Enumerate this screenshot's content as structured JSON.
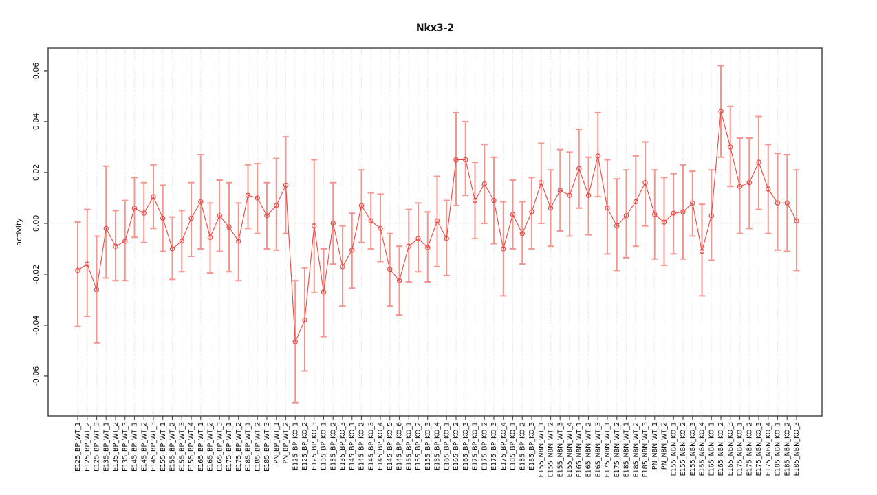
{
  "figure": {
    "title": "Nkx3-2"
  },
  "chart_data": {
    "type": "line",
    "title": "Nkx3-2",
    "xlabel": "",
    "ylabel": "activity",
    "legend": "none",
    "grid": "vertical dotted gridline per category; dotted horizontal line at y=0",
    "marker": "open-circle with error bars",
    "ylim": [
      -0.0757,
      0.0689
    ],
    "yticks": [
      0.06,
      0.04,
      0.02,
      0,
      -0.02,
      -0.04,
      -0.06
    ],
    "ytick_labels": [
      "0.06",
      "0.04",
      "0.02",
      "0.00",
      "-0.02",
      "-0.04",
      "-0.06"
    ],
    "categories": [
      "E125_BP_WT_1",
      "E125_BP_WT_2",
      "E125_BP_WT_3",
      "E135_BP_WT_1",
      "E135_BP_WT_2",
      "E135_BP_WT_3",
      "E145_BP_WT_1",
      "E145_BP_WT_2",
      "E145_BP_WT_3",
      "E155_BP_WT_1",
      "E155_BP_WT_2",
      "E155_BP_WT_3",
      "E155_BP_WT_4",
      "E165_BP_WT_1",
      "E165_BP_WT_2",
      "E165_BP_WT_3",
      "E175_BP_WT_1",
      "E175_BP_WT_2",
      "E185_BP_WT_1",
      "E185_BP_WT_2",
      "E185_BP_WT_3",
      "PN_BP_WT_1",
      "PN_BP_WT_2",
      "E125_BP_KO_1",
      "E125_BP_KO_2",
      "E125_BP_KO_3",
      "E135_BP_KO_1",
      "E135_BP_KO_2",
      "E135_BP_KO_3",
      "E145_BP_KO_1",
      "E145_BP_KO_2",
      "E145_BP_KO_3",
      "E145_BP_KO_4",
      "E145_BP_KO_5",
      "E145_BP_KO_6",
      "E155_BP_KO_1",
      "E155_BP_KO_2",
      "E155_BP_KO_3",
      "E155_BP_KO_4",
      "E165_BP_KO_1",
      "E165_BP_KO_2",
      "E165_BP_KO_3",
      "E175_BP_KO_1",
      "E175_BP_KO_2",
      "E175_BP_KO_3",
      "E175_BP_KO_4",
      "E185_BP_KO_1",
      "E185_BP_KO_2",
      "E185_BP_KO_3",
      "E155_NBN_WT_1",
      "E155_NBN_WT_2",
      "E155_NBN_WT_3",
      "E155_NBN_WT_4",
      "E165_NBN_WT_1",
      "E165_NBN_WT_2",
      "E165_NBN_WT_3",
      "E175_NBN_WT_1",
      "E175_NBN_WT_2",
      "E185_NBN_WT_1",
      "E185_NBN_WT_2",
      "E185_NBN_WT_3",
      "PN_NBN_WT_1",
      "PN_NBN_WT_2",
      "E155_NBN_KO_1",
      "E155_NBN_KO_2",
      "E155_NBN_KO_3",
      "E155_NBN_KO_4",
      "E165_NBN_KO_1",
      "E165_NBN_KO_2",
      "E165_NBN_KO_3",
      "E175_NBN_KO_1",
      "E175_NBN_KO_2",
      "E175_NBN_KO_3",
      "E175_NBN_KO_4",
      "E185_NBN_KO_1",
      "E185_NBN_KO_2",
      "E185_NBN_KO_3"
    ],
    "series": [
      {
        "name": "activity",
        "values": [
          -0.0185,
          -0.016,
          -0.026,
          -0.002,
          -0.009,
          -0.007,
          0.006,
          0.004,
          0.0105,
          0.002,
          -0.01,
          -0.007,
          0.002,
          0.0085,
          -0.0055,
          0.003,
          -0.0015,
          -0.007,
          0.011,
          0.01,
          0.003,
          0.007,
          0.015,
          -0.0465,
          -0.038,
          -0.001,
          -0.027,
          0.0,
          -0.017,
          -0.0105,
          0.007,
          0.001,
          -0.002,
          -0.018,
          -0.0225,
          -0.009,
          -0.006,
          -0.0095,
          0.001,
          -0.006,
          0.025,
          0.025,
          0.009,
          0.0155,
          0.009,
          -0.01,
          0.0035,
          -0.004,
          0.0045,
          0.016,
          0.006,
          0.013,
          0.011,
          0.0215,
          0.011,
          0.0265,
          0.006,
          -0.001,
          0.003,
          0.0085,
          0.016,
          0.0035,
          0.0005,
          0.004,
          0.0045,
          0.008,
          -0.011,
          0.003,
          0.044,
          0.03,
          0.0145,
          0.016,
          0.024,
          0.0135,
          0.008,
          0.008,
          0.001
        ],
        "ci_low": [
          -0.0405,
          -0.0365,
          -0.047,
          -0.0215,
          -0.0225,
          -0.0225,
          -0.0055,
          -0.0075,
          -0.002,
          -0.011,
          -0.022,
          -0.019,
          -0.013,
          -0.01,
          -0.0195,
          -0.011,
          -0.019,
          -0.0225,
          -0.002,
          -0.004,
          -0.01,
          -0.0105,
          -0.004,
          -0.0705,
          -0.058,
          -0.027,
          -0.0445,
          -0.016,
          -0.0325,
          -0.0255,
          -0.0075,
          -0.01,
          -0.015,
          -0.0325,
          -0.036,
          -0.023,
          -0.019,
          -0.023,
          -0.017,
          -0.0205,
          0.007,
          0.011,
          -0.006,
          0.0,
          -0.008,
          -0.0285,
          -0.01,
          -0.016,
          -0.01,
          0.0,
          -0.009,
          -0.003,
          -0.005,
          0.006,
          -0.0045,
          0.0105,
          -0.012,
          -0.0185,
          -0.0135,
          -0.009,
          -0.001,
          -0.014,
          -0.0165,
          -0.012,
          -0.014,
          -0.005,
          -0.0285,
          -0.0145,
          0.026,
          0.0145,
          -0.004,
          -0.002,
          0.0055,
          -0.004,
          -0.0105,
          -0.011,
          -0.0185
        ],
        "ci_high": [
          0.0005,
          0.0055,
          -0.005,
          0.0225,
          0.005,
          0.009,
          0.018,
          0.016,
          0.023,
          0.015,
          0.0025,
          0.005,
          0.016,
          0.027,
          0.008,
          0.017,
          0.016,
          0.008,
          0.023,
          0.0235,
          0.016,
          0.0255,
          0.034,
          -0.0225,
          -0.0175,
          0.025,
          -0.01,
          0.016,
          -0.001,
          0.004,
          0.021,
          0.012,
          0.0115,
          -0.004,
          -0.009,
          0.0055,
          0.008,
          0.0045,
          0.0185,
          0.009,
          0.0435,
          0.04,
          0.024,
          0.031,
          0.026,
          0.0085,
          0.017,
          0.0085,
          0.018,
          0.0315,
          0.021,
          0.029,
          0.028,
          0.037,
          0.026,
          0.0435,
          0.025,
          0.0175,
          0.021,
          0.0265,
          0.032,
          0.021,
          0.018,
          0.0195,
          0.023,
          0.0205,
          0.0075,
          0.021,
          0.062,
          0.046,
          0.0335,
          0.0335,
          0.042,
          0.031,
          0.0275,
          0.027,
          0.021
        ]
      }
    ],
    "colors": {
      "errorbar": "#f9948c",
      "line": "#ee4540",
      "point": "#ee4540",
      "gridline": "#dedede",
      "zero_line": "#dadada",
      "axis": "#555555",
      "text": "#111111",
      "background": "#ffffff"
    }
  }
}
